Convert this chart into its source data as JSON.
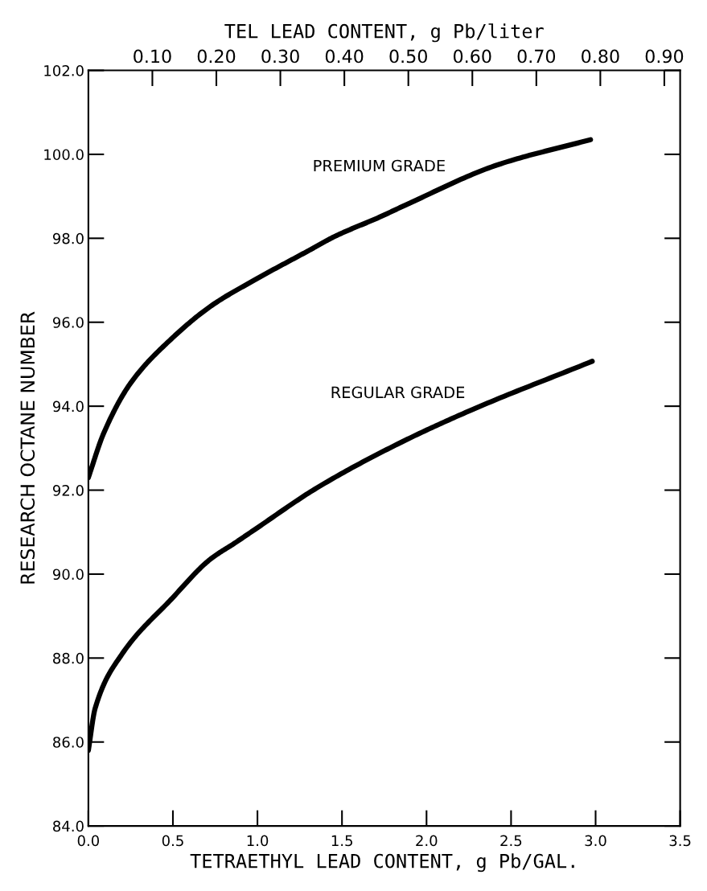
{
  "chart_data": {
    "type": "line",
    "xlabel": "TETRAETHYL LEAD CONTENT, g Pb/GAL.",
    "ylabel": "RESEARCH OCTANE NUMBER",
    "x2label": "TEL LEAD CONTENT, g Pb/liter",
    "xlim": [
      0,
      3.5
    ],
    "xticks": [
      {
        "value": 0,
        "label": "0.0"
      },
      0.5,
      {
        "value": 1,
        "label": "1.0"
      },
      1.5,
      {
        "value": 2,
        "label": "2.0"
      },
      2.5,
      {
        "value": 3,
        "label": "3.0"
      },
      3.5
    ],
    "ylim": [
      84,
      102
    ],
    "yticks": [
      {
        "value": 84,
        "label": "84.0"
      },
      {
        "value": 86,
        "label": "86.0"
      },
      {
        "value": 88,
        "label": "88.0"
      },
      {
        "value": 90,
        "label": "90.0"
      },
      {
        "value": 92,
        "label": "92.0"
      },
      {
        "value": 94,
        "label": "94.0"
      },
      {
        "value": 96,
        "label": "96.0"
      },
      {
        "value": 98,
        "label": "98.0"
      },
      {
        "value": 100,
        "label": "100.0"
      },
      {
        "value": 102,
        "label": "102.0"
      }
    ],
    "x2lim": [
      0,
      0.9247
    ],
    "x2ticks": [
      {
        "value": 0.1,
        "label": "0.10"
      },
      {
        "value": 0.2,
        "label": "0.20"
      },
      {
        "value": 0.3,
        "label": "0.30"
      },
      {
        "value": 0.4,
        "label": "0.40"
      },
      {
        "value": 0.5,
        "label": "0.50"
      },
      {
        "value": 0.6,
        "label": "0.60"
      },
      {
        "value": 0.7,
        "label": "0.70"
      },
      {
        "value": 0.8,
        "label": "0.80"
      },
      {
        "value": 0.9,
        "label": "0.90"
      }
    ],
    "grid": false,
    "legend": false,
    "series": [
      {
        "name": "PREMIUM GRADE",
        "color": "#000000",
        "x": [
          0,
          0.09,
          0.25,
          0.49,
          0.73,
          0.98,
          1.3,
          1.46,
          1.72,
          1.88,
          2.42,
          2.97
        ],
        "values": [
          92.3,
          93.35,
          94.55,
          95.6,
          96.4,
          97.0,
          97.7,
          98.05,
          98.5,
          98.8,
          99.75,
          100.35
        ]
      },
      {
        "name": "REGULAR GRADE",
        "color": "#000000",
        "x": [
          0,
          0.04,
          0.2,
          0.49,
          0.72,
          0.87,
          0.98,
          1.35,
          1.83,
          2.26,
          2.98
        ],
        "values": [
          85.8,
          86.8,
          88.1,
          89.4,
          90.35,
          90.75,
          91.05,
          92.05,
          93.1,
          93.9,
          95.07
        ]
      }
    ]
  }
}
